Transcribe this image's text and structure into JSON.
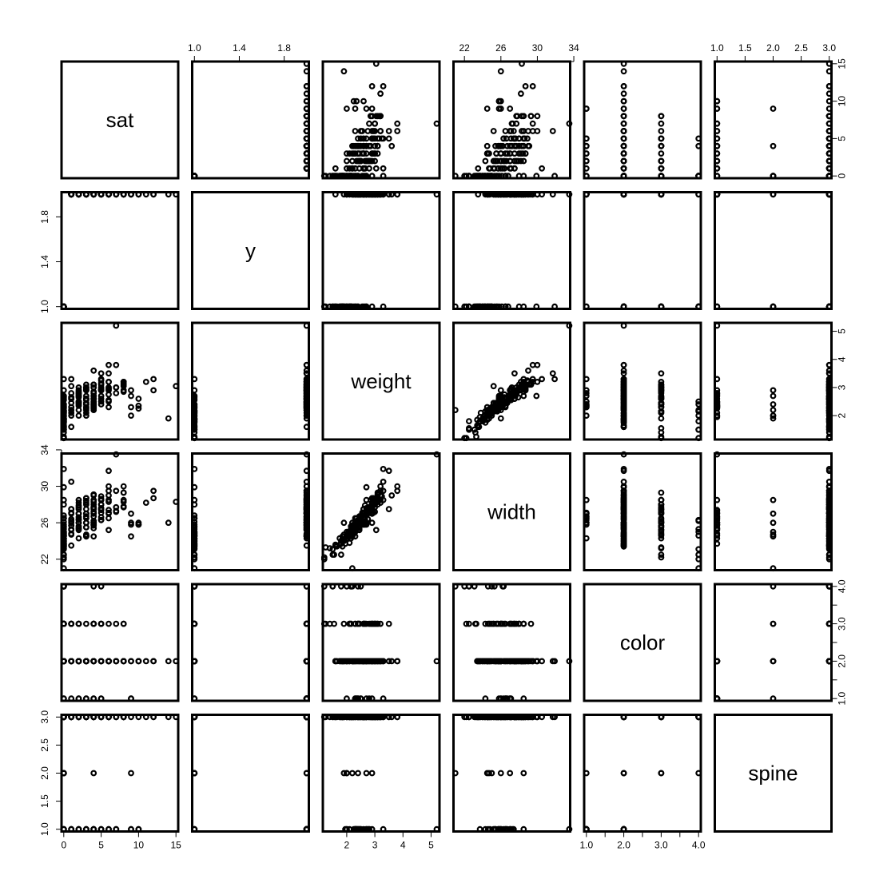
{
  "chart_data": {
    "type": "scatter",
    "kind": "scatterplot-matrix",
    "title": "",
    "point_color": "#000000",
    "variables": [
      {
        "name": "sat",
        "range": [
          -0.3,
          15.3
        ],
        "ticks": [
          0,
          5,
          10,
          15
        ],
        "tick_labels": [
          "0",
          "5",
          "10",
          "15"
        ]
      },
      {
        "name": "y",
        "range": [
          0.98,
          2.02
        ],
        "ticks": [
          1.0,
          1.4,
          1.8
        ],
        "tick_labels": [
          "1.0",
          "1.4",
          "1.8"
        ]
      },
      {
        "name": "weight",
        "range": [
          1.15,
          5.3
        ],
        "ticks": [
          2,
          3,
          4,
          5
        ],
        "tick_labels": [
          "2",
          "3",
          "4",
          "5"
        ]
      },
      {
        "name": "width",
        "range": [
          20.8,
          33.6
        ],
        "ticks": [
          22,
          26,
          30,
          34
        ],
        "tick_labels": [
          "22",
          "26",
          "30",
          "34"
        ]
      },
      {
        "name": "color",
        "range": [
          0.94,
          4.06
        ],
        "ticks": [
          1.0,
          2.0,
          3.0,
          4.0
        ],
        "tick_labels": [
          "1.0",
          "2.0",
          "3.0",
          "4.0"
        ],
        "minor_ticks": [
          1.5,
          2.5,
          3.5
        ]
      },
      {
        "name": "spine",
        "range": [
          0.96,
          3.04
        ],
        "ticks": [
          1.0,
          1.5,
          2.0,
          2.5,
          3.0
        ],
        "tick_labels": [
          "1.0",
          "1.5",
          "2.0",
          "2.5",
          "3.0"
        ]
      }
    ],
    "observations": [
      [
        8,
        2,
        3.05,
        28.3,
        2,
        3
      ],
      [
        0,
        1,
        1.55,
        22.5,
        3,
        3
      ],
      [
        9,
        2,
        2.3,
        26.0,
        1,
        1
      ],
      [
        0,
        1,
        2.1,
        24.8,
        3,
        3
      ],
      [
        4,
        2,
        2.6,
        26.0,
        3,
        3
      ],
      [
        0,
        1,
        2.1,
        23.8,
        2,
        3
      ],
      [
        0,
        1,
        2.35,
        26.5,
        1,
        1
      ],
      [
        0,
        1,
        1.9,
        24.7,
        3,
        2
      ],
      [
        0,
        1,
        1.95,
        23.7,
        2,
        1
      ],
      [
        0,
        1,
        2.15,
        25.6,
        3,
        3
      ],
      [
        0,
        1,
        2.15,
        24.3,
        3,
        3
      ],
      [
        0,
        1,
        2.65,
        25.8,
        2,
        3
      ],
      [
        11,
        2,
        3.2,
        28.2,
        2,
        3
      ],
      [
        0,
        1,
        2.2,
        21.0,
        4,
        2
      ],
      [
        14,
        2,
        1.9,
        26.0,
        2,
        3
      ],
      [
        1,
        2,
        2.8,
        27.1,
        1,
        1
      ],
      [
        1,
        2,
        3.05,
        25.2,
        3,
        3
      ],
      [
        3,
        2,
        2.2,
        24.7,
        2,
        3
      ],
      [
        2,
        2,
        2.0,
        24.3,
        1,
        1
      ],
      [
        0,
        1,
        2.4,
        25.5,
        2,
        3
      ],
      [
        1,
        2,
        2.6,
        27.0,
        3,
        3
      ],
      [
        5,
        2,
        2.5,
        26.3,
        4,
        3
      ],
      [
        0,
        1,
        2.7,
        29.9,
        2,
        3
      ],
      [
        3,
        2,
        2.9,
        28.2,
        2,
        3
      ],
      [
        9,
        2,
        2.7,
        25.8,
        2,
        1
      ],
      [
        5,
        2,
        2.6,
        26.6,
        2,
        3
      ],
      [
        2,
        2,
        2.5,
        26.6,
        1,
        1
      ],
      [
        3,
        2,
        2.3,
        24.5,
        2,
        3
      ],
      [
        6,
        2,
        3.2,
        29.0,
        2,
        3
      ],
      [
        0,
        1,
        2.55,
        26.8,
        2,
        3
      ],
      [
        5,
        2,
        3.5,
        27.5,
        3,
        3
      ],
      [
        10,
        2,
        2.6,
        25.8,
        2,
        1
      ],
      [
        8,
        2,
        3.2,
        28.5,
        3,
        3
      ],
      [
        0,
        1,
        1.8,
        22.5,
        4,
        3
      ],
      [
        0,
        1,
        2.0,
        24.5,
        2,
        2
      ],
      [
        0,
        1,
        2.25,
        24.8,
        2,
        3
      ],
      [
        1,
        2,
        2.6,
        27.5,
        2,
        3
      ],
      [
        4,
        2,
        2.6,
        27.0,
        2,
        3
      ],
      [
        12,
        2,
        2.9,
        28.7,
        2,
        3
      ],
      [
        6,
        2,
        2.75,
        27.0,
        2,
        1
      ],
      [
        5,
        2,
        3.1,
        28.5,
        2,
        3
      ],
      [
        3,
        2,
        2.4,
        26.0,
        1,
        1
      ],
      [
        0,
        1,
        1.8,
        23.7,
        2,
        3
      ],
      [
        3,
        2,
        2.9,
        26.0,
        2,
        3
      ],
      [
        0,
        1,
        2.3,
        26.5,
        1,
        1
      ],
      [
        7,
        2,
        5.2,
        33.5,
        2,
        1
      ],
      [
        0,
        1,
        1.85,
        23.4,
        2,
        3
      ],
      [
        5,
        2,
        2.95,
        27.1,
        3,
        3
      ],
      [
        2,
        2,
        2.7,
        26.0,
        2,
        3
      ],
      [
        4,
        2,
        3.1,
        28.0,
        3,
        3
      ],
      [
        0,
        1,
        2.1,
        24.6,
        3,
        3
      ],
      [
        4,
        2,
        2.8,
        27.7,
        2,
        3
      ],
      [
        3,
        2,
        2.45,
        26.7,
        2,
        3
      ],
      [
        3,
        2,
        2.4,
        25.5,
        3,
        3
      ],
      [
        4,
        2,
        2.45,
        25.7,
        2,
        1
      ],
      [
        7,
        2,
        3.0,
        27.7,
        2,
        3
      ],
      [
        4,
        2,
        2.7,
        27.5,
        2,
        3
      ],
      [
        6,
        2,
        3.2,
        29.5,
        2,
        3
      ],
      [
        4,
        2,
        2.2,
        24.5,
        2,
        3
      ],
      [
        0,
        1,
        1.65,
        23.4,
        2,
        3
      ],
      [
        2,
        2,
        2.7,
        27.0,
        3,
        3
      ],
      [
        5,
        2,
        2.9,
        27.4,
        2,
        1
      ],
      [
        9,
        2,
        2.9,
        27.0,
        1,
        2
      ],
      [
        5,
        2,
        2.7,
        27.6,
        2,
        3
      ],
      [
        0,
        1,
        1.2,
        22.0,
        4,
        3
      ],
      [
        0,
        1,
        1.4,
        23.2,
        3,
        3
      ],
      [
        0,
        1,
        1.5,
        23.1,
        4,
        3
      ],
      [
        6,
        2,
        3.0,
        28.3,
        2,
        3
      ],
      [
        4,
        2,
        2.5,
        26.7,
        1,
        1
      ],
      [
        0,
        1,
        2.0,
        25.0,
        2,
        2
      ],
      [
        1,
        2,
        2.2,
        25.7,
        2,
        3
      ],
      [
        0,
        1,
        2.3,
        25.0,
        3,
        3
      ],
      [
        2,
        2,
        2.45,
        25.4,
        2,
        1
      ],
      [
        1,
        2,
        1.6,
        23.5,
        2,
        3
      ],
      [
        6,
        2,
        2.9,
        27.4,
        3,
        3
      ],
      [
        0,
        1,
        1.85,
        24.2,
        2,
        3
      ],
      [
        4,
        2,
        2.35,
        25.8,
        1,
        1
      ],
      [
        4,
        2,
        2.25,
        25.4,
        2,
        1
      ],
      [
        2,
        2,
        2.65,
        27.9,
        2,
        3
      ],
      [
        5,
        2,
        2.9,
        28.0,
        2,
        3
      ],
      [
        10,
        2,
        2.35,
        26.0,
        2,
        1
      ],
      [
        3,
        2,
        2.6,
        26.5,
        2,
        3
      ],
      [
        8,
        2,
        3.1,
        29.3,
        3,
        3
      ],
      [
        4,
        2,
        3.6,
        29.0,
        2,
        3
      ],
      [
        0,
        1,
        1.6,
        23.5,
        2,
        3
      ],
      [
        9,
        2,
        2.0,
        24.5,
        2,
        3
      ],
      [
        7,
        2,
        3.8,
        29.5,
        2,
        3
      ],
      [
        6,
        2,
        2.95,
        28.5,
        2,
        3
      ],
      [
        4,
        2,
        2.4,
        26.2,
        4,
        3
      ],
      [
        6,
        2,
        2.55,
        27.1,
        2,
        3
      ],
      [
        3,
        2,
        2.6,
        27.0,
        2,
        3
      ],
      [
        1,
        2,
        2.6,
        27.5,
        2,
        3
      ],
      [
        0,
        1,
        2.0,
        24.6,
        4,
        3
      ],
      [
        3,
        2,
        2.55,
        26.0,
        2,
        3
      ],
      [
        15,
        2,
        3.05,
        28.3,
        2,
        3
      ],
      [
        0,
        1,
        2.15,
        25.3,
        4,
        3
      ],
      [
        4,
        2,
        2.4,
        26.0,
        3,
        2
      ],
      [
        8,
        2,
        3.2,
        30.0,
        2,
        3
      ],
      [
        5,
        2,
        3.0,
        28.0,
        3,
        3
      ],
      [
        6,
        2,
        3.8,
        30.0,
        2,
        3
      ],
      [
        8,
        2,
        2.9,
        27.7,
        2,
        3
      ],
      [
        5,
        2,
        2.4,
        26.3,
        1,
        1
      ],
      [
        1,
        2,
        2.2,
        26.0,
        2,
        3
      ],
      [
        0,
        1,
        1.85,
        24.5,
        2,
        3
      ],
      [
        0,
        1,
        2.6,
        26.5,
        3,
        3
      ],
      [
        12,
        2,
        3.3,
        29.5,
        2,
        3
      ],
      [
        2,
        2,
        2.85,
        28.5,
        3,
        3
      ],
      [
        4,
        2,
        2.3,
        26.0,
        3,
        3
      ],
      [
        3,
        2,
        3.0,
        28.0,
        2,
        3
      ],
      [
        6,
        2,
        2.3,
        25.2,
        2,
        1
      ],
      [
        0,
        1,
        1.9,
        24.0,
        2,
        3
      ],
      [
        8,
        2,
        3.15,
        29.3,
        2,
        3
      ],
      [
        4,
        2,
        3.1,
        28.3,
        2,
        3
      ],
      [
        1,
        2,
        2.65,
        26.2,
        3,
        3
      ],
      [
        2,
        2,
        2.9,
        27.0,
        2,
        3
      ],
      [
        2,
        2,
        2.75,
        26.4,
        2,
        3
      ],
      [
        2,
        2,
        2.45,
        25.2,
        3,
        3
      ],
      [
        3,
        2,
        3.1,
        28.7,
        2,
        3
      ],
      [
        0,
        1,
        2.15,
        25.0,
        4,
        3
      ],
      [
        5,
        2,
        3.3,
        28.5,
        1,
        1
      ],
      [
        2,
        2,
        2.8,
        27.5,
        2,
        3
      ],
      [
        1,
        2,
        2.65,
        26.4,
        3,
        3
      ],
      [
        5,
        2,
        3.15,
        28.6,
        2,
        3
      ],
      [
        7,
        2,
        2.8,
        27.3,
        2,
        1
      ],
      [
        3,
        2,
        2.6,
        27.5,
        2,
        3
      ],
      [
        0,
        1,
        2.9,
        28.0,
        3,
        3
      ],
      [
        0,
        1,
        3.3,
        31.9,
        2,
        3
      ],
      [
        6,
        2,
        3.5,
        31.7,
        2,
        3
      ],
      [
        7,
        2,
        3.0,
        27.2,
        3,
        3
      ],
      [
        0,
        1,
        1.5,
        22.5,
        4,
        3
      ],
      [
        3,
        2,
        2.0,
        24.6,
        2,
        1
      ],
      [
        5,
        2,
        3.25,
        28.9,
        2,
        3
      ],
      [
        0,
        1,
        1.6,
        23.6,
        2,
        3
      ],
      [
        0,
        1,
        1.25,
        23.3,
        3,
        3
      ],
      [
        2,
        2,
        3.0,
        28.2,
        2,
        3
      ],
      [
        5,
        2,
        2.9,
        27.5,
        3,
        3
      ],
      [
        2,
        2,
        2.35,
        26.0,
        2,
        3
      ],
      [
        4,
        2,
        2.85,
        27.6,
        2,
        3
      ],
      [
        0,
        1,
        1.2,
        22.2,
        3,
        3
      ],
      [
        1,
        2,
        2.1,
        24.8,
        2,
        1
      ],
      [
        2,
        2,
        2.4,
        25.6,
        2,
        3
      ],
      [
        3,
        2,
        2.1,
        24.5,
        2,
        3
      ],
      [
        1,
        2,
        2.45,
        25.7,
        3,
        3
      ],
      [
        0,
        1,
        1.85,
        24.0,
        2,
        3
      ],
      [
        3,
        2,
        2.7,
        27.0,
        1,
        1
      ],
      [
        1,
        2,
        3.3,
        30.5,
        2,
        3
      ],
      [
        4,
        2,
        3.0,
        28.5,
        3,
        3
      ],
      [
        2,
        2,
        2.5,
        26.3,
        2,
        3
      ],
      [
        1,
        2,
        2.0,
        24.7,
        2,
        3
      ],
      [
        0,
        1,
        2.7,
        28.5,
        2,
        2
      ],
      [
        0,
        1,
        1.75,
        23.6,
        2,
        3
      ],
      [
        2,
        2,
        2.8,
        27.7,
        3,
        3
      ],
      [
        6,
        2,
        2.5,
        26.5,
        2,
        3
      ],
      [
        4,
        2,
        2.6,
        25.8,
        2,
        3
      ],
      [
        3,
        2,
        2.25,
        25.5,
        2,
        3
      ],
      [
        8,
        2,
        2.85,
        27.8,
        2,
        3
      ],
      [
        0,
        1,
        1.8,
        24.0,
        2,
        3
      ],
      [
        3,
        2,
        2.95,
        28.7,
        2,
        3
      ],
      [
        1,
        2,
        2.3,
        25.3,
        2,
        1
      ],
      [
        3,
        2,
        3.0,
        28.4,
        2,
        3
      ],
      [
        4,
        2,
        3.1,
        29.1,
        2,
        3
      ],
      [
        2,
        2,
        2.2,
        25.4,
        2,
        3
      ],
      [
        0,
        1,
        1.9,
        24.2,
        2,
        3
      ],
      [
        10,
        2,
        2.25,
        25.8,
        2,
        3
      ],
      [
        0,
        1,
        2.4,
        26.1,
        3,
        3
      ],
      [
        0,
        1,
        1.75,
        24.3,
        2,
        3
      ],
      [
        4,
        2,
        2.7,
        27.2,
        2,
        3
      ],
      [
        0,
        1,
        2.05,
        24.9,
        2,
        3
      ]
    ]
  }
}
